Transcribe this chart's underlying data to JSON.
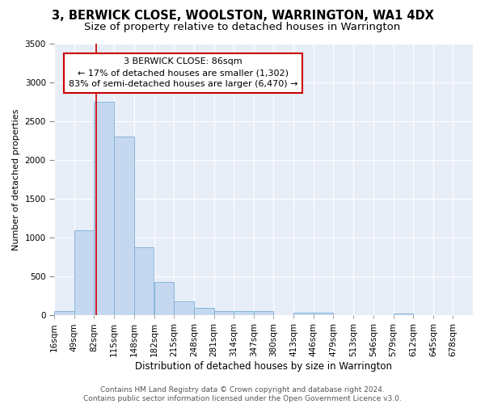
{
  "title1": "3, BERWICK CLOSE, WOOLSTON, WARRINGTON, WA1 4DX",
  "title2": "Size of property relative to detached houses in Warrington",
  "xlabel": "Distribution of detached houses by size in Warrington",
  "ylabel": "Number of detached properties",
  "bin_edges": [
    16,
    49,
    82,
    115,
    148,
    182,
    215,
    248,
    281,
    314,
    347,
    380,
    413,
    446,
    479,
    513,
    546,
    579,
    612,
    645,
    678
  ],
  "bar_heights": [
    50,
    1100,
    2750,
    2300,
    880,
    430,
    180,
    95,
    60,
    55,
    50,
    0,
    35,
    35,
    0,
    0,
    0,
    25,
    0,
    0
  ],
  "bar_color": "#c5d8f0",
  "bar_edge_color": "#7aaed6",
  "background_color": "#e8eef8",
  "grid_color": "#ffffff",
  "vline_x": 86,
  "vline_color": "#cc0000",
  "annotation_text": "3 BERWICK CLOSE: 86sqm\n← 17% of detached houses are smaller (1,302)\n83% of semi-detached houses are larger (6,470) →",
  "annotation_box_color": "#ffffff",
  "annotation_box_edge_color": "#cc0000",
  "ylim": [
    0,
    3500
  ],
  "yticks": [
    0,
    500,
    1000,
    1500,
    2000,
    2500,
    3000,
    3500
  ],
  "footer_text": "Contains HM Land Registry data © Crown copyright and database right 2024.\nContains public sector information licensed under the Open Government Licence v3.0.",
  "title1_fontsize": 10.5,
  "title2_fontsize": 9.5,
  "xlabel_fontsize": 8.5,
  "ylabel_fontsize": 8,
  "tick_fontsize": 7.5,
  "annotation_fontsize": 8,
  "footer_fontsize": 6.5
}
